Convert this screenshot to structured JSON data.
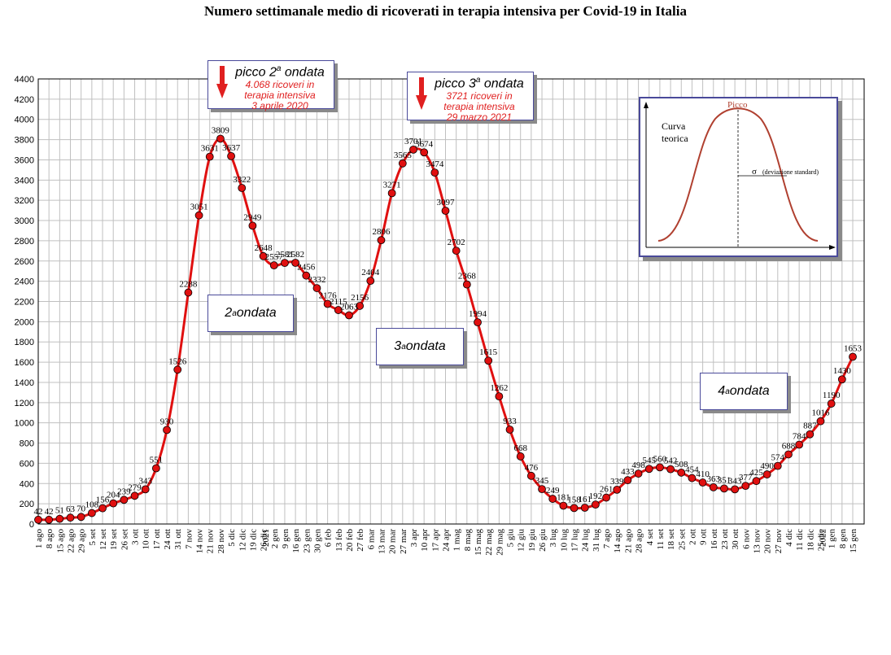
{
  "chart_data": {
    "type": "line",
    "title": "Numero settimanale medio di ricoverati in terapia intensiva per Covid-19 in Italia",
    "ylim": [
      0,
      4400
    ],
    "ytick_step": 200,
    "grid": true,
    "x_tick_labels": [
      "1 ago",
      "8 ago",
      "15 ago",
      "22 ago",
      "29 ago",
      "5 set",
      "12 set",
      "19 set",
      "26 set",
      "3 ott",
      "10 ott",
      "17 ott",
      "24 ott",
      "31 ott",
      "7 nov",
      "14 nov",
      "21 nov",
      "28 nov",
      "5 dic",
      "12 dic",
      "19 dic",
      "26 dic",
      "2021 2 gen",
      "9 gen",
      "16 gen",
      "23 gen",
      "30 gen",
      "6 feb",
      "13 feb",
      "20 feb",
      "27 feb",
      "6 mar",
      "13 mar",
      "20 mar",
      "27 mar",
      "3 apr",
      "10 apr",
      "17 apr",
      "24 apr",
      "1 mag",
      "8 mag",
      "15 mag",
      "22 mag",
      "29 mag",
      "5 giu",
      "12 giu",
      "19 giu",
      "26 giu",
      "3 lug",
      "10 lug",
      "17 lug",
      "24 lug",
      "31 lug",
      "7 ago",
      "14 ago",
      "21 ago",
      "28 ago",
      "4 set",
      "11 set",
      "18 set",
      "25 set",
      "2 ott",
      "9 ott",
      "16 ott",
      "23 ott",
      "30 ott",
      "6 nov",
      "13 nov",
      "20 nov",
      "27 nov",
      "4 dic",
      "11 dic",
      "18 dic",
      "25 dic",
      "2022 1 gen",
      "8 gen",
      "15 gen"
    ],
    "series": [
      {
        "values": [
          42,
          42,
          51,
          63,
          70,
          108,
          156,
          204,
          239,
          279,
          343,
          551,
          930,
          1526,
          2288,
          3051,
          3631,
          3809,
          3637,
          3322,
          2949,
          2648,
          2557,
          2581,
          2582,
          2456,
          2332,
          2176,
          2115,
          2063,
          2156,
          2404,
          2806,
          3271,
          3565,
          3701,
          3674,
          3474,
          3097,
          2702,
          2368,
          1994,
          1615,
          1262,
          933,
          668,
          476,
          345,
          249,
          181,
          158,
          161,
          192,
          261,
          339,
          433,
          498,
          545,
          560,
          542,
          508,
          454,
          410,
          363,
          351,
          343,
          377,
          425,
          490,
          574,
          688,
          784,
          887,
          1016,
          1190,
          1430,
          1653
        ],
        "labels": [
          "42",
          "42",
          "51",
          "63",
          "70",
          "108",
          "156",
          "204",
          "239",
          "279",
          "343",
          "551",
          "930",
          "1526",
          "2288",
          "3051",
          "3631",
          "3809",
          "3637",
          "3322",
          "2949",
          "2648",
          "2557",
          "2581",
          "2582",
          "2456",
          "2332",
          "2176",
          "2115",
          "2063",
          "2156",
          "2404",
          "2806",
          "3271",
          "3565",
          "3701",
          "3674",
          "3474",
          "3097",
          "2702",
          "2368",
          "1994",
          "1615",
          "1262",
          "933",
          "668",
          "476",
          "345",
          "249",
          "181",
          "158",
          "161",
          "192",
          "261",
          "339",
          "433",
          "498",
          "545",
          "560",
          "542",
          "508",
          "454",
          "410",
          "363",
          "351",
          "343",
          "377",
          "425",
          "490",
          "574",
          "688",
          "784",
          "887",
          "1016",
          "1190",
          "1430",
          "1653"
        ],
        "color": "#e01010"
      }
    ]
  },
  "callouts": {
    "peak2": {
      "title": "picco 2",
      "title_sup": "a",
      "title_rest": " ondata",
      "line1": "4.068 ricoveri in",
      "line2": "terapia intensiva",
      "line3": "3 aprile 2020"
    },
    "peak3": {
      "title": "picco 3",
      "title_sup": "a",
      "title_rest": " ondata",
      "line1": "3721 ricoveri in",
      "line2": "terapia intensiva",
      "line3": "29 marzo 2021"
    },
    "wave2": {
      "num": "2",
      "sup": "a",
      "rest": " ondata"
    },
    "wave3": {
      "num": "3",
      "sup": "a",
      "rest": " ondata"
    },
    "wave4": {
      "num": "4",
      "sup": "a",
      "rest": " ondata"
    }
  },
  "inset": {
    "peak_label": "Picco",
    "curve_label_1": "Curva",
    "curve_label_2": "teorica",
    "sigma_symbol": "σ",
    "sigma_label": "(deviazione standard)"
  },
  "colors": {
    "line": "#e01010",
    "marker_fill": "#e01010",
    "arrow": "#e02020",
    "callout_border": "#4a4a9a",
    "grid": "#c0c0c0"
  }
}
